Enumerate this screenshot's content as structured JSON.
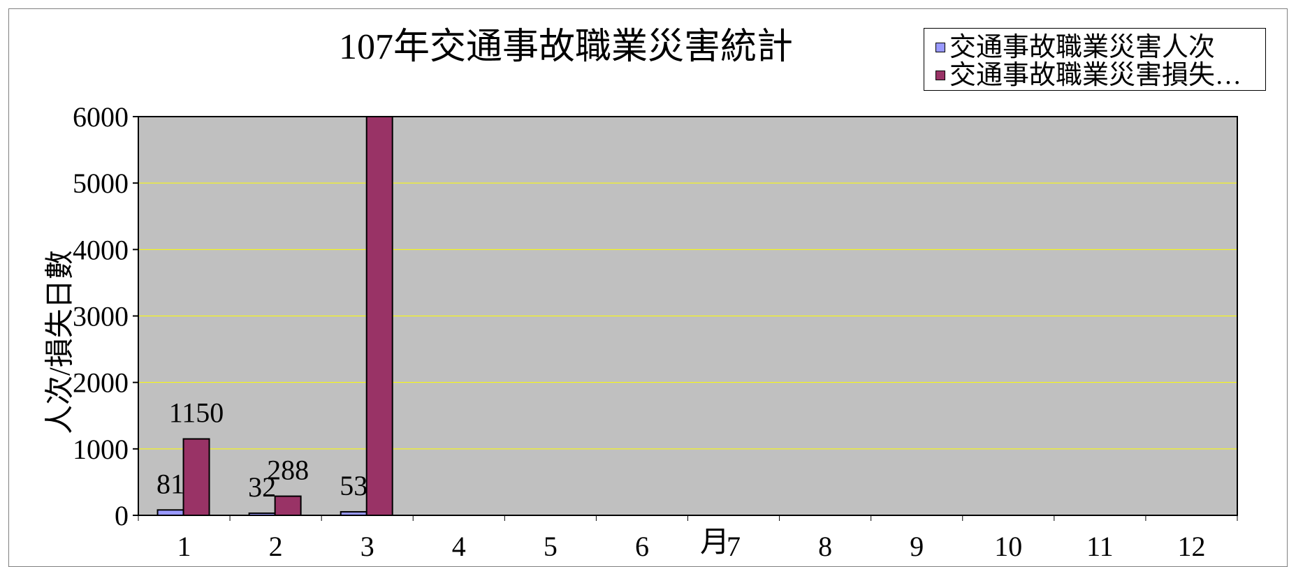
{
  "chart_data": {
    "type": "bar",
    "title": "107年交通事故職業災害統計",
    "xlabel": "月",
    "ylabel": "人次/損失日數",
    "categories": [
      "1",
      "2",
      "3",
      "4",
      "5",
      "6",
      "7",
      "8",
      "9",
      "10",
      "11",
      "12"
    ],
    "ylim": [
      0,
      6000
    ],
    "yticks": [
      "0",
      "1000",
      "2000",
      "3000",
      "4000",
      "5000",
      "6000"
    ],
    "grid": true,
    "legend_position": "top-right",
    "series": [
      {
        "name": "交通事故職業災害人次",
        "values": [
          81,
          32,
          53,
          null,
          null,
          null,
          null,
          null,
          null,
          null,
          null,
          null
        ],
        "color": "#9999ff",
        "labels": [
          "81",
          "32",
          "53",
          "",
          "",
          "",
          "",
          "",
          "",
          "",
          "",
          ""
        ]
      },
      {
        "name": "交通事故職業災害損失…",
        "values": [
          1150,
          288,
          6000,
          null,
          null,
          null,
          null,
          null,
          null,
          null,
          null,
          null
        ],
        "color": "#993366",
        "labels": [
          "1150",
          "288",
          "",
          "",
          "",
          "",
          "",
          "",
          "",
          "",
          "",
          ""
        ]
      }
    ],
    "plot_background": "#c0c0c0",
    "gridline_color": "#ffff00"
  }
}
